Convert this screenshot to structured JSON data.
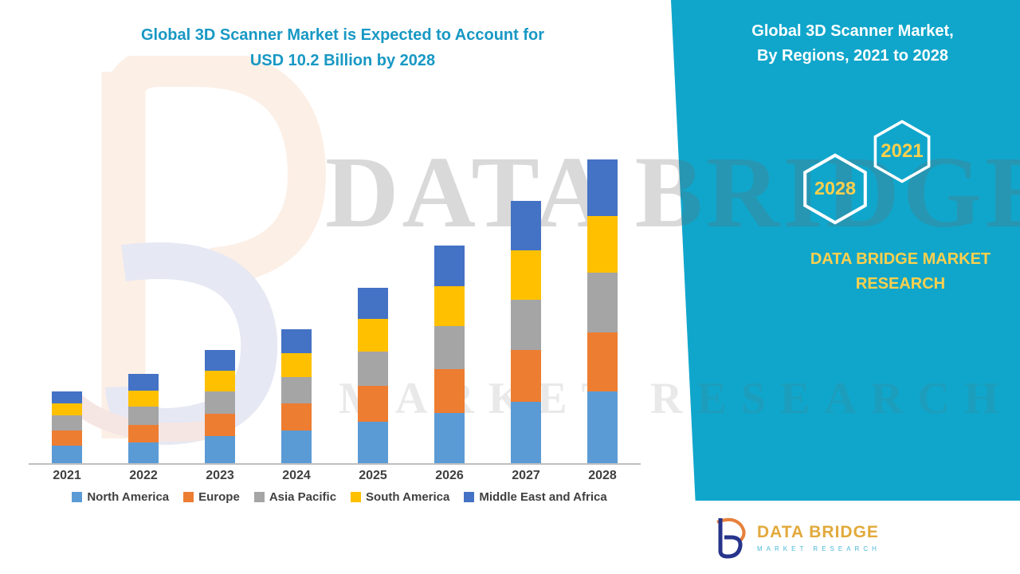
{
  "header": {
    "title_line1": "Global 3D Scanner Market is Expected to Account for",
    "title_line2": "USD 10.2 Billion by 2028",
    "title_color": "#1898C4"
  },
  "side_panel": {
    "bg_color": "#10A6CB",
    "heading_line1": "Global 3D Scanner Market,",
    "heading_line2": "By Regions, 2021 to 2028",
    "hexagon_left": "2028",
    "hexagon_right": "2021",
    "brand_line1": "DATA BRIDGE MARKET",
    "brand_line2": "RESEARCH",
    "accent_yellow": "#FFD04D"
  },
  "watermark": {
    "line1": "DATA BRIDGE",
    "line2": "MARKET RESEARCH"
  },
  "footer_logo": {
    "name": "DATA BRIDGE",
    "tagline": "MARKET RESEARCH"
  },
  "chart_data": {
    "type": "bar",
    "stacked": true,
    "title": "Global 3D Scanner Market is Expected to Account for USD 10.2 Billion by 2028",
    "subtitle": "Global 3D Scanner Market, By Regions, 2021 to 2028",
    "unit": "USD Billion",
    "categories": [
      "2021",
      "2022",
      "2023",
      "2024",
      "2025",
      "2026",
      "2027",
      "2028"
    ],
    "series": [
      {
        "name": "North America",
        "color": "#5B9BD5",
        "values": [
          0.6,
          0.7,
          0.9,
          1.1,
          1.4,
          1.7,
          2.05,
          2.4
        ]
      },
      {
        "name": "Europe",
        "color": "#ED7D31",
        "values": [
          0.5,
          0.6,
          0.75,
          0.9,
          1.2,
          1.45,
          1.75,
          2.0
        ]
      },
      {
        "name": "Asia Pacific",
        "color": "#A5A5A5",
        "values": [
          0.5,
          0.6,
          0.75,
          0.9,
          1.15,
          1.45,
          1.7,
          2.0
        ]
      },
      {
        "name": "South America",
        "color": "#FFC000",
        "values": [
          0.4,
          0.55,
          0.7,
          0.8,
          1.1,
          1.35,
          1.65,
          1.9
        ]
      },
      {
        "name": "Middle East and Africa",
        "color": "#4472C4",
        "values": [
          0.4,
          0.55,
          0.7,
          0.8,
          1.05,
          1.35,
          1.65,
          1.9
        ]
      }
    ],
    "totals": [
      2.4,
      3.0,
      3.8,
      4.5,
      5.9,
      7.3,
      8.8,
      10.2
    ],
    "ylim": [
      0,
      10.6
    ],
    "grid": false,
    "legend_position": "bottom"
  }
}
